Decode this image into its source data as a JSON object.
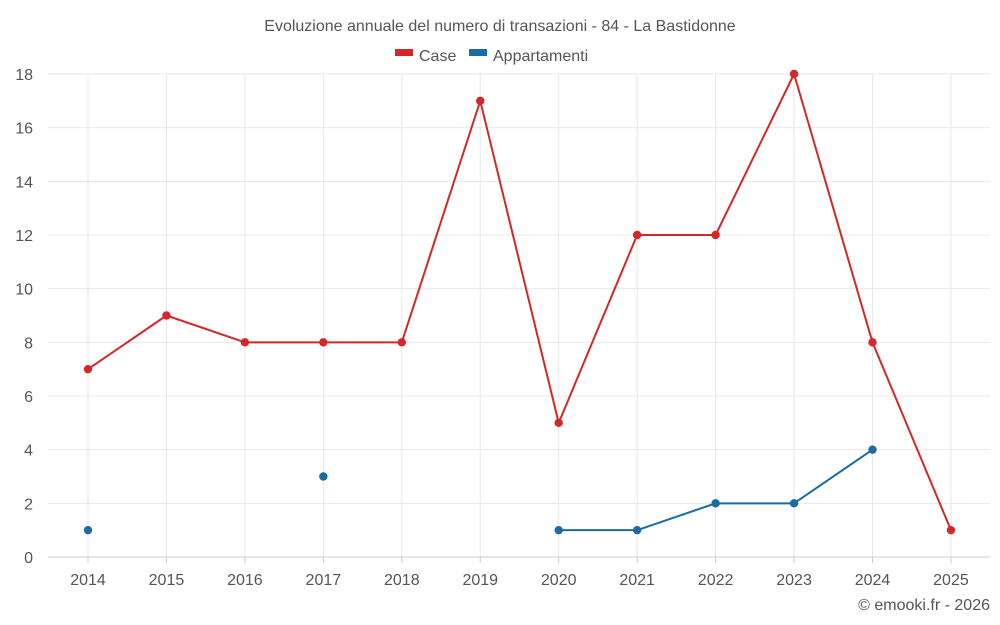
{
  "chart_data": {
    "type": "line",
    "title": "Evoluzione annuale del numero di transazioni - 84 - La Bastidonne",
    "categories": [
      "2014",
      "2015",
      "2016",
      "2017",
      "2018",
      "2019",
      "2020",
      "2021",
      "2022",
      "2023",
      "2024",
      "2025"
    ],
    "series": [
      {
        "name": "Case",
        "color": "#d62728",
        "values": [
          7,
          9,
          8,
          8,
          8,
          17,
          5,
          12,
          12,
          18,
          8,
          1
        ]
      },
      {
        "name": "Appartamenti",
        "color": "#1a6aa3",
        "values": [
          1,
          null,
          null,
          3,
          null,
          null,
          1,
          1,
          2,
          2,
          4,
          null
        ]
      }
    ],
    "ylim": [
      0,
      18
    ],
    "yticks": [
      0,
      2,
      4,
      6,
      8,
      10,
      12,
      14,
      16,
      18
    ],
    "xlabel": "",
    "ylabel": "",
    "grid": true,
    "legend_position": "top-center"
  },
  "credit": "© emooki.fr - 2026"
}
